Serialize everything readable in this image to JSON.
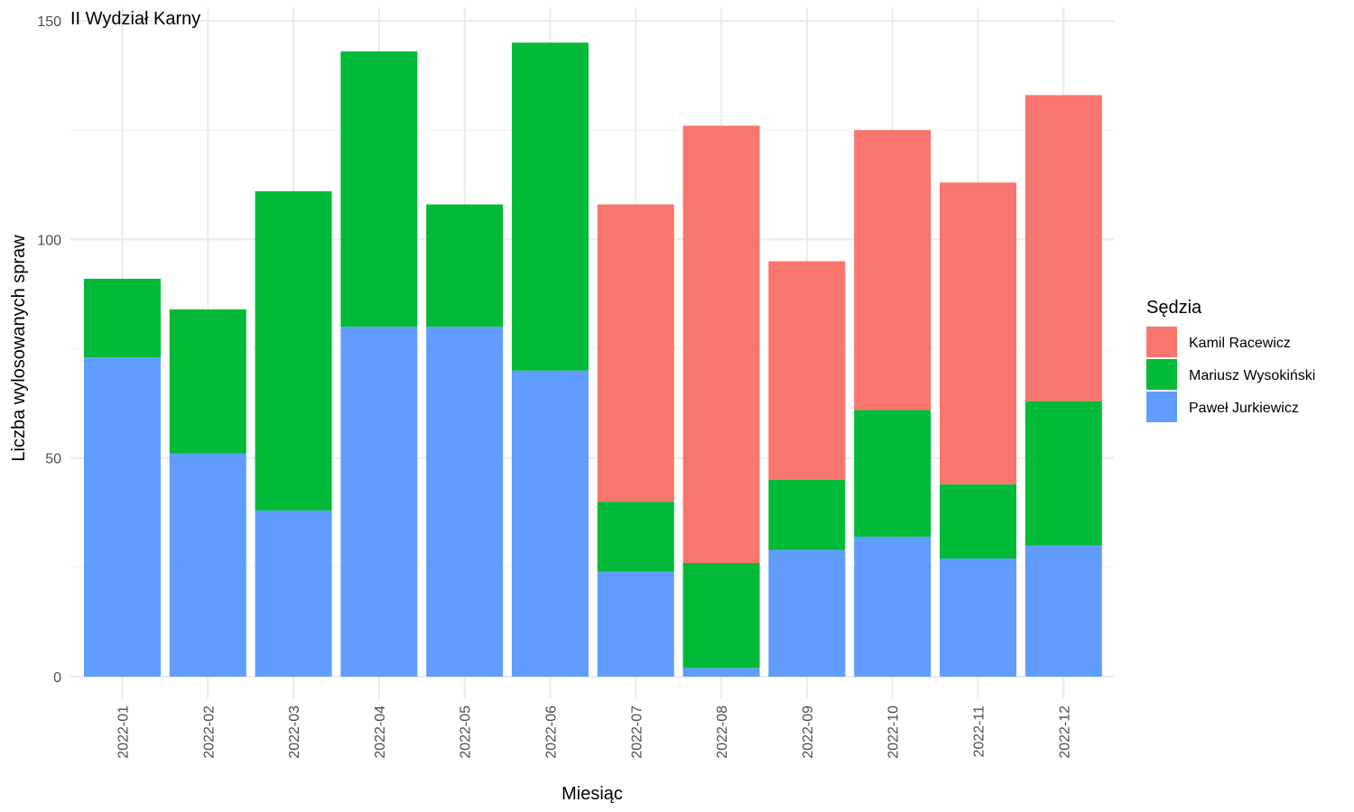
{
  "chart_data": {
    "type": "bar",
    "stacked": true,
    "title": "II Wydział Karny",
    "xlabel": "Miesiąc",
    "ylabel": "Liczba wylosowanych spraw",
    "ylim": [
      0,
      150
    ],
    "yticks": [
      0,
      50,
      100,
      150
    ],
    "grid": true,
    "legend_title": "Sędzia",
    "legend_position": "right",
    "categories": [
      "2022-01",
      "2022-02",
      "2022-03",
      "2022-04",
      "2022-05",
      "2022-06",
      "2022-07",
      "2022-08",
      "2022-09",
      "2022-10",
      "2022-11",
      "2022-12"
    ],
    "series": [
      {
        "name": "Kamil Racewicz",
        "color": "#F8766D",
        "values": [
          0,
          0,
          0,
          0,
          0,
          0,
          68,
          100,
          50,
          64,
          69,
          70
        ]
      },
      {
        "name": "Mariusz Wysokiński",
        "color": "#00BA38",
        "values": [
          18,
          33,
          73,
          63,
          28,
          75,
          16,
          24,
          16,
          29,
          17,
          33
        ]
      },
      {
        "name": "Paweł Jurkiewicz",
        "color": "#619CFF",
        "values": [
          73,
          51,
          38,
          80,
          80,
          70,
          24,
          2,
          29,
          32,
          27,
          30
        ]
      }
    ]
  }
}
